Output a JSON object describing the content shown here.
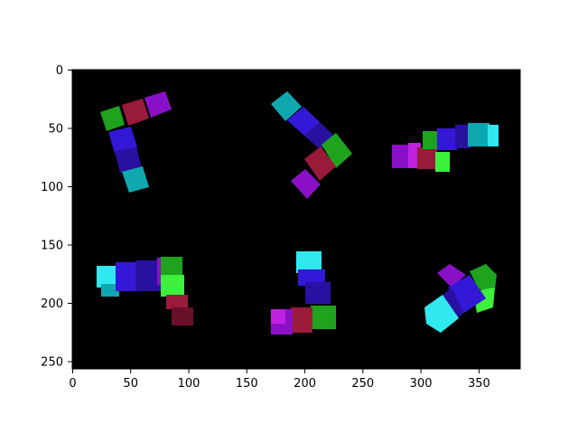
{
  "axes": {
    "x_ticks": [
      "0",
      "50",
      "100",
      "150",
      "200",
      "250",
      "300",
      "350"
    ],
    "y_ticks": [
      "0",
      "50",
      "100",
      "150",
      "200",
      "250"
    ],
    "x_range": [
      0,
      386
    ],
    "y_range": [
      0,
      256
    ],
    "y_inverted": true
  },
  "image": {
    "background": "#000000",
    "description_objects": [
      "L-shaped block figure (green, red, purple, blue, cyan)",
      "L-shaped block figure (cyan, blue, green, red, purple)",
      "block figure (purple, red, green, blue, cyan)",
      "L-shaped block figure (cyan, blue, purple, green, red)",
      "L-shaped block figure (cyan, blue, green, red, purple)",
      "block figure (purple, blue, green, cyan)"
    ]
  },
  "colors": {
    "green": "#1fa31f",
    "bright_green": "#3cf03c",
    "red": "#9a1a3a",
    "purple": "#8a10c8",
    "magenta": "#c020e0",
    "blue": "#3418d8",
    "indigo": "#2a10a0",
    "cyan": "#10a8b0",
    "bright_cyan": "#30e8f0"
  }
}
